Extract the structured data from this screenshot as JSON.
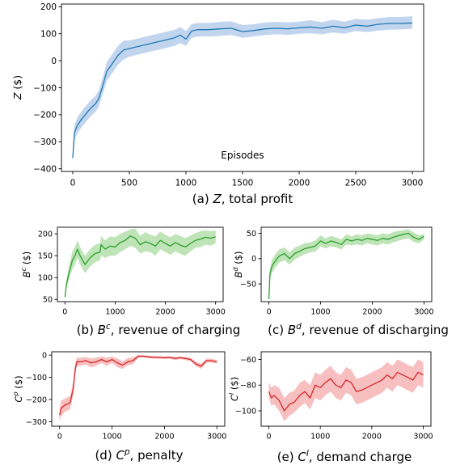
{
  "chart_data": [
    {
      "type": "line",
      "id": "a",
      "color": "#1f77b4",
      "band_color": "#aec7e8",
      "ylabel": {
        "main": "Z",
        "unit": " ($)",
        "sup": ""
      },
      "caption": {
        "prefix": "(a) ",
        "sym": "Z",
        "sup": "",
        "rest": ", total profit"
      },
      "annotation": "Episodes",
      "xlim": [
        -100,
        3100
      ],
      "ylim": [
        -410,
        210
      ],
      "xticks": [
        0,
        500,
        1000,
        1500,
        2000,
        2500,
        3000
      ],
      "yticks": [
        -400,
        -300,
        -200,
        -100,
        0,
        100,
        200
      ],
      "ytick_labels": [
        "−400",
        "−300",
        "−200",
        "−100",
        "0",
        "100",
        "200"
      ],
      "series": [
        {
          "x": [
            0,
            15,
            40,
            80,
            120,
            160,
            200,
            230,
            260,
            300,
            350,
            400,
            450,
            500,
            550,
            600,
            700,
            800,
            900,
            950,
            1000,
            1050,
            1100,
            1200,
            1300,
            1400,
            1500,
            1600,
            1700,
            1800,
            1900,
            2000,
            2100,
            2200,
            2300,
            2400,
            2500,
            2600,
            2700,
            2800,
            2900,
            3000
          ],
          "y": [
            -360,
            -265,
            -240,
            -215,
            -195,
            -175,
            -160,
            -140,
            -100,
            -40,
            -10,
            20,
            40,
            45,
            50,
            55,
            65,
            75,
            85,
            95,
            80,
            110,
            115,
            115,
            118,
            120,
            108,
            112,
            118,
            120,
            118,
            122,
            125,
            120,
            128,
            122,
            132,
            128,
            135,
            138,
            138,
            140
          ],
          "lower": [
            -360,
            -290,
            -270,
            -245,
            -225,
            -205,
            -190,
            -170,
            -130,
            -75,
            -45,
            -15,
            5,
            15,
            20,
            25,
            35,
            45,
            55,
            65,
            55,
            85,
            90,
            90,
            92,
            95,
            85,
            90,
            95,
            98,
            96,
            100,
            102,
            98,
            105,
            100,
            110,
            106,
            112,
            115,
            116,
            118
          ],
          "upper": [
            -360,
            -240,
            -210,
            -185,
            -165,
            -145,
            -130,
            -110,
            -70,
            -5,
            25,
            55,
            75,
            75,
            80,
            85,
            95,
            105,
            115,
            125,
            110,
            135,
            140,
            140,
            144,
            146,
            132,
            135,
            142,
            144,
            142,
            145,
            150,
            143,
            152,
            145,
            155,
            152,
            158,
            162,
            162,
            165
          ]
        }
      ]
    },
    {
      "type": "line",
      "id": "b",
      "color": "#2ca02c",
      "band_color": "#a8dba0",
      "ylabel": {
        "main": "B",
        "unit": " ($)",
        "sup": "c"
      },
      "caption": {
        "prefix": "(b) ",
        "sym": "B",
        "sup": "c",
        "rest": ", revenue of charging"
      },
      "xlim": [
        -150,
        3150
      ],
      "ylim": [
        45,
        215
      ],
      "xticks": [
        0,
        1000,
        2000,
        3000
      ],
      "yticks": [
        50,
        100,
        150,
        200
      ],
      "ytick_labels": [
        "50",
        "100",
        "150",
        "200"
      ],
      "series": [
        {
          "x": [
            0,
            30,
            80,
            150,
            200,
            250,
            300,
            400,
            500,
            600,
            700,
            720,
            800,
            900,
            1000,
            1100,
            1200,
            1300,
            1400,
            1500,
            1600,
            1700,
            1800,
            1900,
            2000,
            2100,
            2200,
            2300,
            2400,
            2500,
            2600,
            2700,
            2800,
            2900,
            3000
          ],
          "y": [
            55,
            85,
            110,
            140,
            150,
            165,
            150,
            130,
            145,
            155,
            158,
            175,
            165,
            172,
            170,
            180,
            185,
            195,
            190,
            175,
            182,
            178,
            172,
            185,
            178,
            172,
            180,
            174,
            170,
            178,
            185,
            188,
            192,
            190,
            193
          ],
          "lower": [
            55,
            75,
            95,
            120,
            130,
            145,
            130,
            110,
            125,
            135,
            140,
            150,
            145,
            150,
            150,
            158,
            165,
            172,
            168,
            155,
            160,
            158,
            150,
            165,
            158,
            152,
            160,
            154,
            150,
            160,
            168,
            170,
            175,
            173,
            178
          ],
          "upper": [
            55,
            95,
            125,
            160,
            170,
            185,
            170,
            150,
            165,
            175,
            178,
            195,
            185,
            194,
            192,
            200,
            205,
            210,
            212,
            195,
            204,
            198,
            194,
            205,
            198,
            192,
            200,
            195,
            190,
            196,
            202,
            206,
            208,
            206,
            208
          ]
        }
      ]
    },
    {
      "type": "line",
      "id": "c",
      "color": "#2ca02c",
      "band_color": "#a8dba0",
      "ylabel": {
        "main": "B",
        "unit": " ($)",
        "sup": "d"
      },
      "caption": {
        "prefix": "(c) ",
        "sym": "B",
        "sup": "d",
        "rest": ", revenue of discharging"
      },
      "xlim": [
        -150,
        3150
      ],
      "ylim": [
        -85,
        62
      ],
      "xticks": [
        0,
        1000,
        2000,
        3000
      ],
      "yticks": [
        -50,
        0,
        50
      ],
      "ytick_labels": [
        "−50",
        "0",
        "50"
      ],
      "series": [
        {
          "x": [
            0,
            20,
            60,
            120,
            200,
            300,
            400,
            500,
            600,
            700,
            800,
            900,
            1000,
            1100,
            1200,
            1300,
            1400,
            1500,
            1600,
            1700,
            1800,
            1900,
            2000,
            2100,
            2200,
            2300,
            2400,
            2500,
            2600,
            2700,
            2800,
            2900,
            3000
          ],
          "y": [
            -80,
            -30,
            -15,
            -5,
            5,
            10,
            0,
            10,
            15,
            20,
            22,
            25,
            35,
            30,
            35,
            32,
            28,
            38,
            35,
            38,
            36,
            40,
            38,
            36,
            40,
            38,
            42,
            45,
            48,
            50,
            42,
            38,
            44
          ],
          "lower": [
            -80,
            -40,
            -28,
            -18,
            -8,
            -3,
            -12,
            -2,
            4,
            9,
            12,
            14,
            24,
            20,
            24,
            22,
            18,
            28,
            26,
            28,
            26,
            30,
            28,
            26,
            30,
            28,
            32,
            35,
            38,
            40,
            33,
            30,
            38
          ],
          "upper": [
            -80,
            -20,
            -2,
            8,
            18,
            22,
            12,
            22,
            26,
            31,
            32,
            36,
            46,
            40,
            45,
            42,
            38,
            48,
            44,
            48,
            46,
            50,
            48,
            46,
            50,
            48,
            52,
            55,
            56,
            58,
            52,
            46,
            49
          ]
        }
      ]
    },
    {
      "type": "line",
      "id": "d",
      "color": "#d62728",
      "band_color": "#f4aaab",
      "ylabel": {
        "main": "C",
        "unit": " ($)",
        "sup": "p"
      },
      "caption": {
        "prefix": "(d) ",
        "sym": "C",
        "sup": "p",
        "rest": ", penalty"
      },
      "xlim": [
        -150,
        3150
      ],
      "ylim": [
        -320,
        15
      ],
      "xticks": [
        0,
        1000,
        2000,
        3000
      ],
      "yticks": [
        -300,
        -200,
        -100,
        0
      ],
      "ytick_labels": [
        "−300",
        "−200",
        "−100",
        "0"
      ],
      "series": [
        {
          "x": [
            0,
            30,
            100,
            200,
            260,
            300,
            330,
            400,
            500,
            600,
            700,
            800,
            900,
            1000,
            1100,
            1200,
            1300,
            1400,
            1500,
            1600,
            1700,
            1800,
            1900,
            2000,
            2100,
            2200,
            2300,
            2400,
            2500,
            2600,
            2700,
            2800,
            2900,
            3000
          ],
          "y": [
            -270,
            -240,
            -225,
            -215,
            -150,
            -60,
            -30,
            -30,
            -25,
            -35,
            -30,
            -20,
            -30,
            -20,
            -35,
            -45,
            -30,
            -25,
            -5,
            -5,
            -8,
            -10,
            -10,
            -12,
            -10,
            -15,
            -12,
            -15,
            -20,
            -40,
            -50,
            -25,
            -25,
            -30
          ],
          "lower": [
            -300,
            -275,
            -255,
            -245,
            -180,
            -85,
            -50,
            -48,
            -42,
            -55,
            -48,
            -36,
            -48,
            -35,
            -55,
            -62,
            -46,
            -40,
            -12,
            -10,
            -14,
            -16,
            -16,
            -18,
            -16,
            -22,
            -18,
            -22,
            -28,
            -50,
            -62,
            -34,
            -34,
            -38
          ],
          "upper": [
            -240,
            -205,
            -195,
            -185,
            -120,
            -35,
            -12,
            -12,
            -8,
            -15,
            -12,
            -6,
            -12,
            -6,
            -15,
            -28,
            -14,
            -10,
            2,
            0,
            -2,
            -4,
            -4,
            -6,
            -4,
            -8,
            -6,
            -8,
            -12,
            -30,
            -38,
            -16,
            -16,
            -22
          ]
        }
      ]
    },
    {
      "type": "line",
      "id": "e",
      "color": "#d62728",
      "band_color": "#f4aaab",
      "ylabel": {
        "main": "C",
        "unit": " ($)",
        "sup": "l"
      },
      "caption": {
        "prefix": "(e) ",
        "sym": "C",
        "sup": "l",
        "rest": ", demand charge"
      },
      "xlim": [
        -150,
        3150
      ],
      "ylim": [
        -112,
        -54
      ],
      "xticks": [
        0,
        1000,
        2000,
        3000
      ],
      "yticks": [
        -100,
        -80,
        -60
      ],
      "ytick_labels": [
        "−100",
        "−80",
        "−60"
      ],
      "series": [
        {
          "x": [
            0,
            50,
            100,
            200,
            300,
            400,
            500,
            600,
            700,
            800,
            900,
            1000,
            1100,
            1200,
            1300,
            1400,
            1500,
            1600,
            1700,
            1800,
            1900,
            2000,
            2100,
            2200,
            2300,
            2400,
            2500,
            2600,
            2700,
            2800,
            2900,
            3000
          ],
          "y": [
            -85,
            -90,
            -88,
            -92,
            -100,
            -95,
            -93,
            -88,
            -85,
            -90,
            -80,
            -82,
            -78,
            -75,
            -80,
            -82,
            -76,
            -78,
            -85,
            -84,
            -82,
            -80,
            -78,
            -76,
            -72,
            -75,
            -70,
            -72,
            -74,
            -76,
            -70,
            -72
          ],
          "lower": [
            -90,
            -96,
            -95,
            -100,
            -108,
            -104,
            -101,
            -97,
            -94,
            -99,
            -90,
            -92,
            -88,
            -85,
            -90,
            -92,
            -86,
            -88,
            -95,
            -94,
            -92,
            -90,
            -88,
            -86,
            -82,
            -85,
            -80,
            -82,
            -84,
            -86,
            -80,
            -82
          ],
          "upper": [
            -78,
            -82,
            -80,
            -82,
            -90,
            -86,
            -84,
            -78,
            -76,
            -80,
            -70,
            -72,
            -68,
            -65,
            -70,
            -72,
            -66,
            -68,
            -75,
            -74,
            -72,
            -70,
            -68,
            -66,
            -62,
            -65,
            -60,
            -62,
            -64,
            -66,
            -60,
            -62
          ]
        }
      ]
    }
  ]
}
